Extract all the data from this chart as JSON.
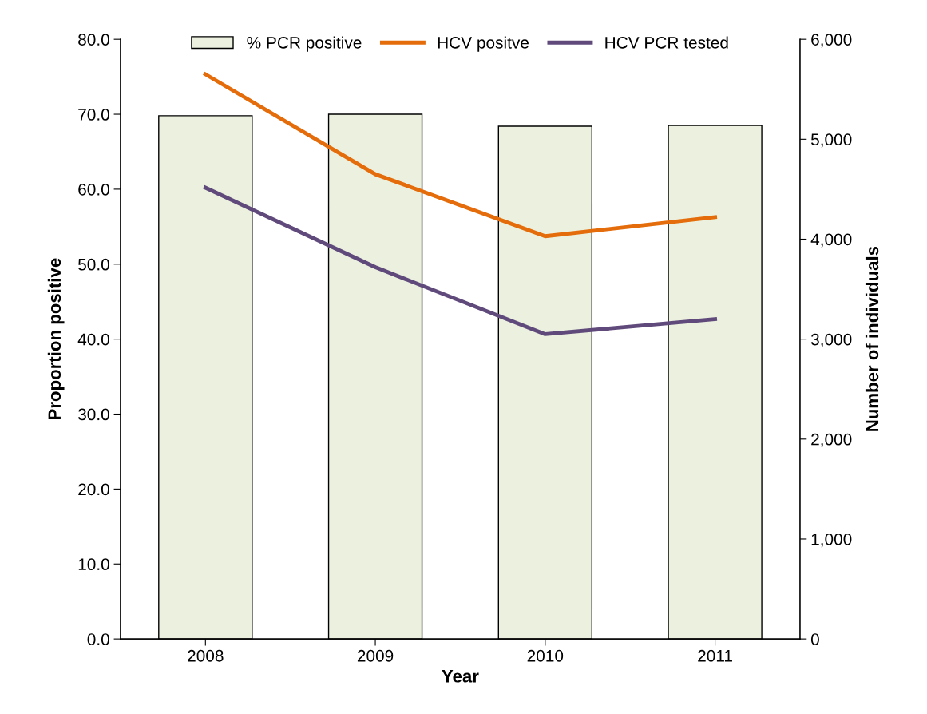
{
  "chart_data": {
    "type": "bar",
    "xlabel": "Year",
    "ylabel": "Proportion positive",
    "y2label": "Number of individuals",
    "categories": [
      "2008",
      "2009",
      "2010",
      "2011"
    ],
    "series": [
      {
        "name": "% PCR positive",
        "color": "#ebf1de",
        "values": [
          69.8,
          70.0,
          68.4,
          68.5
        ]
      },
      {
        "name": "HCV positve",
        "type": "line",
        "axis": "y2",
        "color": "#e46c0a",
        "values": [
          5650,
          4650,
          4030,
          4220
        ]
      },
      {
        "name": "HCV PCR tested",
        "type": "line",
        "axis": "y2",
        "color": "#604a7b",
        "values": [
          4515,
          3720,
          3050,
          3200
        ]
      }
    ],
    "ylim": [
      0,
      80
    ],
    "yticks": [
      {
        "value": 0,
        "label": "0.0"
      },
      {
        "value": 10,
        "label": "10.0"
      },
      {
        "value": 20,
        "label": "20.0"
      },
      {
        "value": 30,
        "label": "30.0"
      },
      {
        "value": 40,
        "label": "40.0"
      },
      {
        "value": 50,
        "label": "50.0"
      },
      {
        "value": 60,
        "label": "60.0"
      },
      {
        "value": 70,
        "label": "70.0"
      },
      {
        "value": 80,
        "label": "80.0"
      }
    ],
    "y2lim": [
      0,
      6000
    ],
    "y2ticks": [
      0,
      {
        "value": 1000,
        "label": "1,000"
      },
      {
        "value": 2000,
        "label": "2,000"
      },
      {
        "value": 3000,
        "label": "3,000"
      },
      {
        "value": 4000,
        "label": "4,000"
      },
      {
        "value": 5000,
        "label": "5,000"
      },
      {
        "value": 6000,
        "label": "6,000"
      }
    ],
    "grid": false,
    "legend": "top",
    "marker": "none",
    "line_style": "solid"
  }
}
